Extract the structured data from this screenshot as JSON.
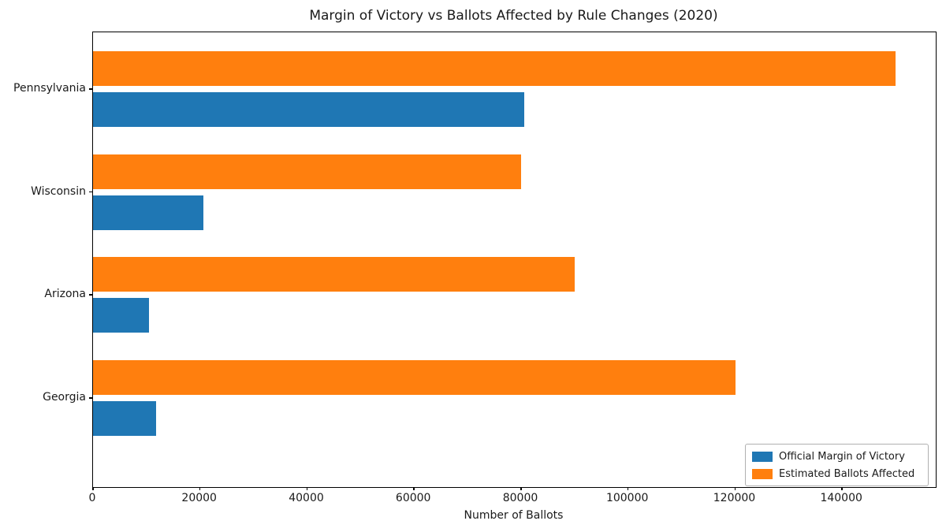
{
  "chart_data": {
    "type": "bar",
    "orientation": "horizontal",
    "title": "Margin of Victory vs Ballots Affected by Rule Changes (2020)",
    "xlabel": "Number of Ballots",
    "ylabel": "",
    "categories": [
      "Pennsylvania",
      "Wisconsin",
      "Arizona",
      "Georgia"
    ],
    "series": [
      {
        "name": "Official Margin of Victory",
        "color": "#1f77b4",
        "values": [
          80555,
          20682,
          10457,
          11779
        ]
      },
      {
        "name": "Estimated Ballots Affected",
        "color": "#ff7f0e",
        "values": [
          150000,
          80000,
          90000,
          120000
        ]
      }
    ],
    "xlim": [
      0,
      157500
    ],
    "xticks": [
      0,
      20000,
      40000,
      60000,
      80000,
      100000,
      120000,
      140000
    ],
    "legend_position": "lower right",
    "grid": false,
    "background_color": "#ffffff",
    "spine_color": "#000000"
  }
}
